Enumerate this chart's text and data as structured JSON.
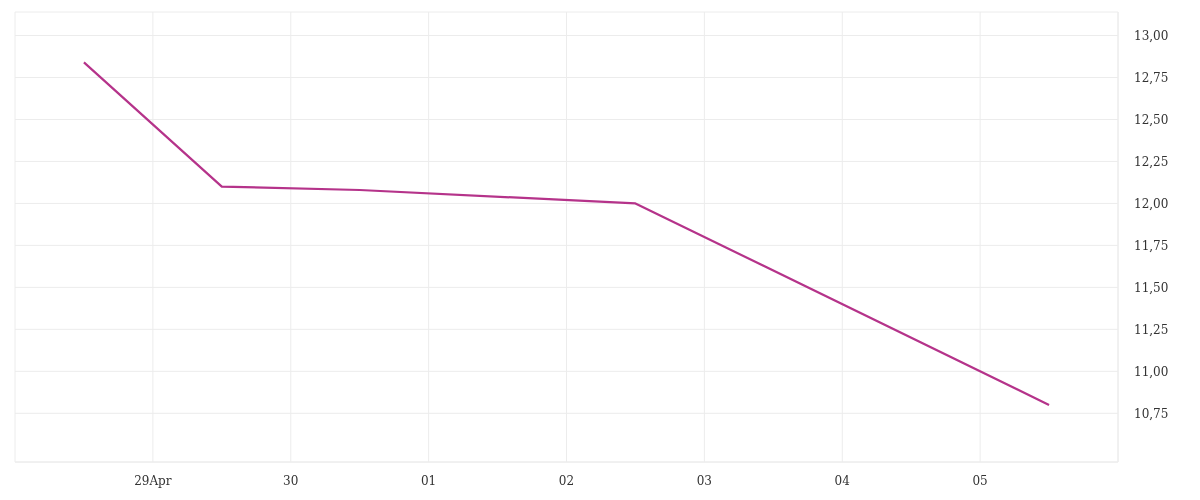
{
  "chart_data": {
    "type": "line",
    "x": [
      "--04-28T12:00",
      "--04-29T12:00",
      "--04-30T12:00",
      "--05-02T12:00",
      "--05-05T12:00"
    ],
    "series": [
      {
        "color": "#b5338a",
        "values": [
          12.84,
          12.1,
          12.08,
          12.0,
          10.8
        ]
      }
    ],
    "xlim": [
      "--04-28",
      "--05-06"
    ],
    "xticks": [
      {
        "value": "--04-28",
        "label": null
      },
      {
        "value": "--04-29",
        "label": "29Apr"
      },
      {
        "value": "--04-30",
        "label": "30"
      },
      {
        "value": "--05-01",
        "label": "01"
      },
      {
        "value": "--05-02",
        "label": "02"
      },
      {
        "value": "--05-03",
        "label": "03"
      },
      {
        "value": "--05-04",
        "label": "04"
      },
      {
        "value": "--05-05",
        "label": "05"
      },
      {
        "value": "--05-06",
        "label": null
      }
    ],
    "ylim": [
      10.46,
      13.14
    ],
    "yticks": [
      {
        "value": 10.75,
        "label": "10,75"
      },
      {
        "value": 11,
        "label": "11,00"
      },
      {
        "value": 11.25,
        "label": "11,25"
      },
      {
        "value": 11.5,
        "label": "11,50"
      },
      {
        "value": 11.75,
        "label": "11,75"
      },
      {
        "value": 12,
        "label": "12,00"
      },
      {
        "value": 12.25,
        "label": "12,25"
      },
      {
        "value": 12.5,
        "label": "12,50"
      },
      {
        "value": 12.75,
        "label": "12,75"
      },
      {
        "value": 13,
        "label": "13,00"
      }
    ],
    "grid": true,
    "legend": false,
    "marker": "none",
    "line_style": "solid"
  }
}
